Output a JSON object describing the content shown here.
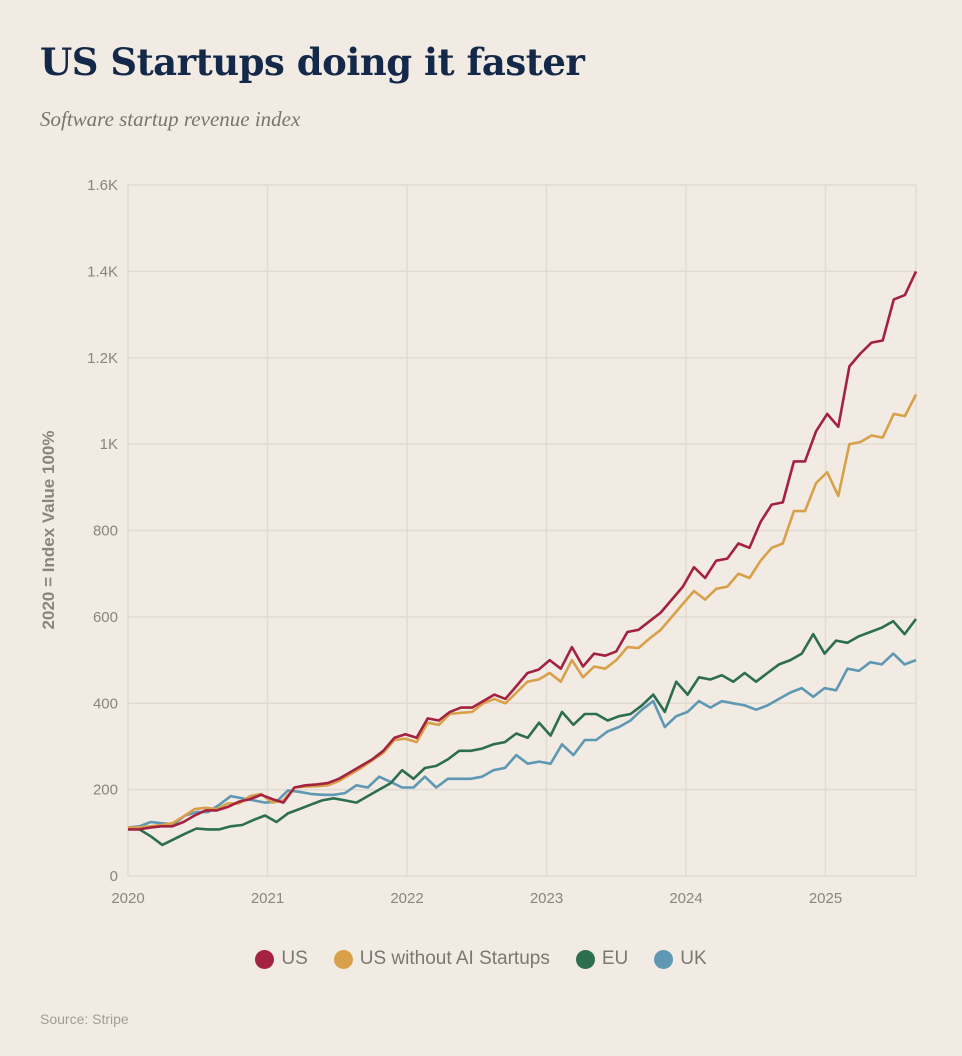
{
  "chart_data": {
    "type": "line",
    "title": "US Startups doing it faster",
    "subtitle": "Software startup revenue index",
    "xlabel": "",
    "ylabel": "2020 = Index Value 100%",
    "x_ticks": [
      "2020",
      "2021",
      "2022",
      "2023",
      "2024",
      "2025"
    ],
    "y_ticks": [
      {
        "value": 0,
        "label": "0"
      },
      {
        "value": 200,
        "label": "200"
      },
      {
        "value": 400,
        "label": "400"
      },
      {
        "value": 600,
        "label": "600"
      },
      {
        "value": 800,
        "label": "800"
      },
      {
        "value": 1000,
        "label": "1K"
      },
      {
        "value": 1200,
        "label": "1.2K"
      },
      {
        "value": 1400,
        "label": "1.4K"
      },
      {
        "value": 1600,
        "label": "1.6K"
      }
    ],
    "ylim": [
      0,
      1600
    ],
    "xlim": [
      2020,
      2025.67
    ],
    "x_start": 2020,
    "x_step_months": 1,
    "grid": true,
    "legend_position": "bottom",
    "series": [
      {
        "name": "US",
        "color": "#a3223f",
        "values": [
          108,
          108,
          112,
          115,
          115,
          125,
          140,
          152,
          152,
          160,
          172,
          178,
          188,
          178,
          170,
          205,
          210,
          212,
          215,
          225,
          240,
          255,
          270,
          290,
          320,
          328,
          320,
          365,
          360,
          380,
          390,
          390,
          405,
          420,
          410,
          440,
          470,
          478,
          500,
          480,
          530,
          485,
          515,
          510,
          520,
          565,
          570,
          590,
          610,
          640,
          670,
          715,
          690,
          730,
          735,
          770,
          760,
          820,
          860,
          865,
          960,
          960,
          1030,
          1070,
          1040,
          1180,
          1210,
          1235,
          1240,
          1335,
          1345,
          1400
        ]
      },
      {
        "name": "US without AI Startups",
        "color": "#d9a04a",
        "values": [
          112,
          112,
          115,
          118,
          122,
          138,
          155,
          158,
          155,
          168,
          168,
          185,
          190,
          170,
          175,
          205,
          207,
          208,
          210,
          220,
          235,
          250,
          268,
          285,
          315,
          318,
          310,
          355,
          350,
          375,
          378,
          380,
          400,
          410,
          400,
          425,
          450,
          455,
          470,
          450,
          500,
          460,
          485,
          480,
          500,
          530,
          528,
          550,
          570,
          600,
          630,
          660,
          640,
          665,
          670,
          700,
          690,
          730,
          760,
          770,
          845,
          845,
          910,
          935,
          880,
          1000,
          1005,
          1020,
          1015,
          1070,
          1065,
          1115
        ]
      },
      {
        "name": "EU",
        "color": "#2d6e50",
        "values": [
          110,
          108,
          92,
          72,
          85,
          98,
          110,
          108,
          108,
          115,
          118,
          130,
          140,
          125,
          145,
          155,
          165,
          175,
          180,
          175,
          170,
          185,
          200,
          215,
          245,
          225,
          250,
          255,
          270,
          290,
          290,
          295,
          305,
          310,
          330,
          320,
          355,
          325,
          380,
          350,
          375,
          375,
          360,
          370,
          375,
          395,
          420,
          380,
          450,
          420,
          460,
          455,
          465,
          450,
          470,
          450,
          470,
          490,
          500,
          515,
          560,
          515,
          545,
          540,
          555,
          565,
          575,
          590,
          560,
          595
        ]
      },
      {
        "name": "UK",
        "color": "#5f98b3",
        "values": [
          112,
          115,
          125,
          122,
          120,
          140,
          148,
          148,
          165,
          185,
          180,
          175,
          170,
          172,
          198,
          195,
          190,
          188,
          188,
          192,
          210,
          205,
          230,
          218,
          205,
          205,
          230,
          205,
          225,
          225,
          225,
          230,
          245,
          250,
          280,
          260,
          265,
          260,
          305,
          280,
          315,
          315,
          335,
          345,
          360,
          385,
          405,
          345,
          370,
          380,
          405,
          390,
          405,
          400,
          395,
          385,
          395,
          410,
          425,
          435,
          415,
          435,
          430,
          480,
          475,
          495,
          490,
          515,
          490,
          500
        ]
      }
    ]
  },
  "legend": {
    "items": [
      {
        "label": "US",
        "color": "#a3223f"
      },
      {
        "label": "US without AI Startups",
        "color": "#d9a04a"
      },
      {
        "label": "EU",
        "color": "#2d6e50"
      },
      {
        "label": "UK",
        "color": "#5f98b3"
      }
    ]
  },
  "source": "Source: Stripe"
}
